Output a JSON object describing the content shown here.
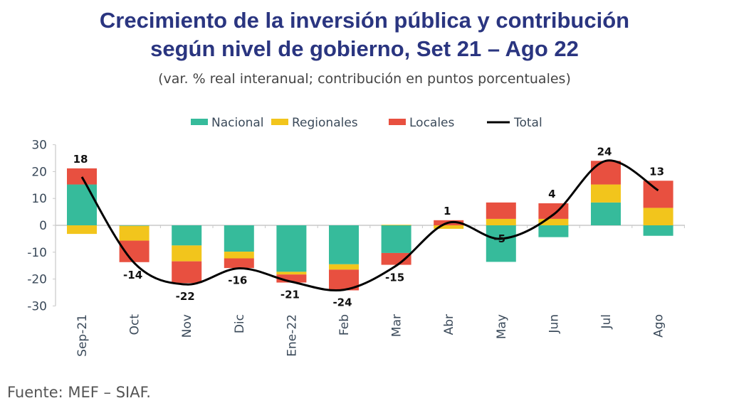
{
  "chart_data": {
    "type": "bar",
    "stacked": true,
    "title": "Crecimiento de la inversión pública y contribución según nivel de gobierno, Set 21 – Ago 22",
    "title_line1": "Crecimiento de la inversión pública y contribución",
    "title_line2": "según nivel de gobierno, Set 21 – Ago 22",
    "subtitle": "(var. % real interanual; contribución en puntos porcentuales)",
    "source": "Fuente: MEF – SIAF.",
    "xlabel": "",
    "ylabel": "",
    "ylim": [
      -30,
      30
    ],
    "yticks": [
      "30",
      "20",
      "10",
      "0",
      "-10",
      "-20",
      "-30"
    ],
    "ytick_values": [
      30,
      20,
      10,
      0,
      -10,
      -20,
      -30
    ],
    "grid": false,
    "legend_position": "top-center",
    "categories": [
      "Sep-21",
      "Oct",
      "Nov",
      "Dic",
      "Ene-22",
      "Feb",
      "Mar",
      "Abr",
      "May",
      "Jun",
      "Jul",
      "Ago"
    ],
    "series": [
      {
        "name": "Nacional",
        "color": "#36bb9b",
        "values": [
          15.2,
          -0.2,
          -7.5,
          -9.8,
          -17.3,
          -14.5,
          -10.3,
          0,
          -13.6,
          -4.4,
          8.5,
          -3.9
        ]
      },
      {
        "name": "Regionales",
        "color": "#f2c51c",
        "values": [
          -3.2,
          -5.5,
          -5.9,
          -2.5,
          -1.0,
          -2.0,
          0.2,
          -1.3,
          2.4,
          2.4,
          6.7,
          6.5
        ]
      },
      {
        "name": "Locales",
        "color": "#e85040",
        "values": [
          6.0,
          -8.0,
          -8.1,
          -3.6,
          -3.0,
          -7.7,
          -4.4,
          1.9,
          6.1,
          5.8,
          8.8,
          10.1
        ]
      }
    ],
    "line": {
      "name": "Total",
      "color": "#000000",
      "values": [
        18,
        -14,
        -22,
        -16,
        -21,
        -24,
        -15,
        1,
        -5,
        4,
        24,
        13
      ]
    },
    "data_labels": [
      "18",
      "-14",
      "-22",
      "-16",
      "-21",
      "-24",
      "-15",
      "1",
      "-5",
      "4",
      "24",
      "13"
    ]
  }
}
